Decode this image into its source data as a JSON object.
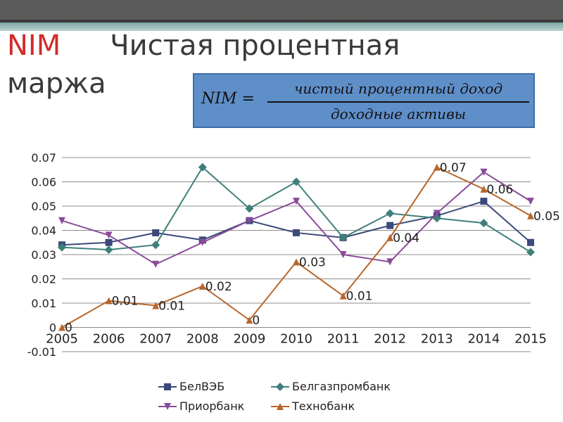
{
  "slide": {
    "title_abbr": "NIM",
    "title_line1": "Чистая процентная",
    "title_line2": "маржа"
  },
  "formula": {
    "lhs": "NIM =",
    "numerator": "чистый процентный доход",
    "denominator": "доходные активы"
  },
  "chart_data": {
    "type": "line",
    "x": [
      "2005",
      "2006",
      "2007",
      "2008",
      "2009",
      "2010",
      "2011",
      "2012",
      "2013",
      "2014",
      "2015"
    ],
    "ylim": [
      -0.01,
      0.07
    ],
    "yticks": [
      "-0.01",
      "0",
      "0.01",
      "0.02",
      "0.03",
      "0.04",
      "0.05",
      "0.06",
      "0.07"
    ],
    "grid": true,
    "legend_position": "bottom",
    "series": [
      {
        "name": "БелВЭБ",
        "color": "#3b4a7a",
        "marker": "square",
        "values": [
          0.034,
          0.035,
          0.039,
          0.036,
          0.044,
          0.039,
          0.037,
          0.042,
          0.046,
          0.052,
          0.035
        ]
      },
      {
        "name": "Белгазпромбанк",
        "color": "#3f7f7a",
        "marker": "diamond",
        "values": [
          0.033,
          0.032,
          0.034,
          0.066,
          0.049,
          0.06,
          0.037,
          0.047,
          0.045,
          0.043,
          0.031
        ]
      },
      {
        "name": "Приорбанк",
        "color": "#8a4a9a",
        "marker": "triangle-down",
        "values": [
          0.044,
          0.038,
          0.026,
          0.035,
          0.044,
          0.052,
          0.03,
          0.027,
          0.047,
          0.064,
          0.052
        ]
      },
      {
        "name": "Технобанк",
        "color": "#b8652a",
        "marker": "triangle-up",
        "values": [
          0.0,
          0.011,
          0.009,
          0.017,
          0.003,
          0.027,
          0.013,
          0.037,
          0.066,
          0.057,
          0.046
        ],
        "data_labels": [
          "0",
          "0.01",
          "0.01",
          "0.02",
          "0",
          "0.03",
          "0.01",
          "0.04",
          "0.07",
          "0.06",
          "0.05"
        ]
      }
    ]
  }
}
